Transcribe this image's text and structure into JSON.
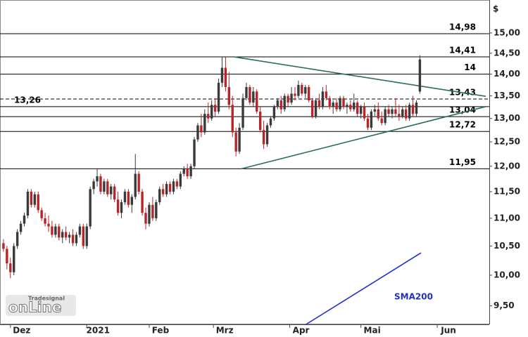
{
  "chart_data": {
    "type": "candlestick",
    "y_unit_label": "$",
    "log_y": true,
    "xlim": [
      0,
      141
    ],
    "ylim": [
      9.21,
      15.85
    ],
    "xticks": [
      {
        "value": 3,
        "label": "Dez"
      },
      {
        "value": 25,
        "label": "2021"
      },
      {
        "value": 43,
        "label": "Feb"
      },
      {
        "value": 61.5,
        "label": "Mrz"
      },
      {
        "value": 83.5,
        "label": "Apr"
      },
      {
        "value": 104,
        "label": "Mai"
      },
      {
        "value": 126,
        "label": "Jun"
      }
    ],
    "yticks": [
      {
        "value": 15,
        "label": "15,00"
      },
      {
        "value": 14.5,
        "label": "14,50"
      },
      {
        "value": 14,
        "label": "14,00"
      },
      {
        "value": 13.5,
        "label": "13,50"
      },
      {
        "value": 13,
        "label": "13,00"
      },
      {
        "value": 12.5,
        "label": "12,50"
      },
      {
        "value": 12,
        "label": "12,00"
      },
      {
        "value": 11.5,
        "label": "11,50"
      },
      {
        "value": 11,
        "label": "11,00"
      },
      {
        "value": 10.5,
        "label": "10,50"
      },
      {
        "value": 10,
        "label": "10,00"
      },
      {
        "value": 9.5,
        "label": "9,50"
      }
    ],
    "up_color": "#3a3a3a",
    "down_color": "#b5262b",
    "x": [
      1,
      2,
      3,
      4,
      5,
      6,
      7,
      8,
      9,
      10,
      11,
      12,
      13,
      14,
      15,
      16,
      17,
      18,
      19,
      20,
      21,
      22,
      23,
      24,
      25,
      26,
      27,
      28,
      29,
      30,
      31,
      32,
      33,
      34,
      35,
      36,
      37,
      38,
      39,
      40,
      41,
      42,
      43,
      44,
      45,
      46,
      47,
      48,
      49,
      50,
      51,
      52,
      53,
      54,
      55,
      56,
      57,
      58,
      59,
      60,
      61,
      62,
      63,
      64,
      65,
      66,
      67,
      68,
      69,
      70,
      71,
      72,
      73,
      74,
      75,
      76,
      77,
      78,
      79,
      80,
      81,
      82,
      83,
      84,
      85,
      86,
      87,
      88,
      89,
      90,
      91,
      92,
      93,
      94,
      95,
      96,
      97,
      98,
      99,
      100,
      101,
      102,
      103,
      104,
      105,
      106,
      107,
      108,
      109,
      110,
      111,
      112,
      113,
      114,
      115,
      116,
      117,
      118,
      119,
      120,
      121
    ],
    "open": [
      10.55,
      10.45,
      10.2,
      10.05,
      10.5,
      10.75,
      10.9,
      11.05,
      11.5,
      11.25,
      11.45,
      11.15,
      11.0,
      10.9,
      10.85,
      10.7,
      10.85,
      10.65,
      10.75,
      10.65,
      10.7,
      10.55,
      10.7,
      10.85,
      10.5,
      10.85,
      11.55,
      11.7,
      11.8,
      11.5,
      11.7,
      11.45,
      11.6,
      11.35,
      11.1,
      11.3,
      11.5,
      11.25,
      11.4,
      11.85,
      11.5,
      11.1,
      10.9,
      11.25,
      11.0,
      11.3,
      11.55,
      11.45,
      11.65,
      11.5,
      11.7,
      11.6,
      11.85,
      11.95,
      11.8,
      12.0,
      12.55,
      12.85,
      12.7,
      13.1,
      13.0,
      13.3,
      13.15,
      13.8,
      14.15,
      13.7,
      13.3,
      12.7,
      12.3,
      12.8,
      13.45,
      13.7,
      13.35,
      13.6,
      13.15,
      12.75,
      12.45,
      12.85,
      13.0,
      13.25,
      13.4,
      13.2,
      13.5,
      13.35,
      13.55,
      13.5,
      13.75,
      13.55,
      13.7,
      13.4,
      13.05,
      13.4,
      13.25,
      13.6,
      13.45,
      13.25,
      13.35,
      13.2,
      13.45,
      13.25,
      13.3,
      13.2,
      13.35,
      13.1,
      13.25,
      13.0,
      12.8,
      13.15,
      13.2,
      13.0,
      12.9,
      13.2,
      13.1,
      13.2,
      13.1,
      13.05,
      13.2,
      13.0,
      13.3,
      13.1,
      13.6
    ],
    "high": [
      10.62,
      10.5,
      10.3,
      10.55,
      10.8,
      10.95,
      11.1,
      11.55,
      11.55,
      11.5,
      11.5,
      11.2,
      11.1,
      11.05,
      10.95,
      10.9,
      10.9,
      10.8,
      10.85,
      10.75,
      10.8,
      10.75,
      10.9,
      10.9,
      10.9,
      11.6,
      11.75,
      11.95,
      11.85,
      11.75,
      11.75,
      11.65,
      11.65,
      11.5,
      11.35,
      11.55,
      11.55,
      11.45,
      12.25,
      11.9,
      11.55,
      11.2,
      11.3,
      11.4,
      11.35,
      11.6,
      11.65,
      11.7,
      11.7,
      11.75,
      11.75,
      11.9,
      12.0,
      12.05,
      12.05,
      12.6,
      12.9,
      13.1,
      13.2,
      13.35,
      13.4,
      13.45,
      13.9,
      14.4,
      14.4,
      14.05,
      13.5,
      12.8,
      12.9,
      13.55,
      13.8,
      13.75,
      13.7,
      13.65,
      13.25,
      12.95,
      12.9,
      13.05,
      13.3,
      13.45,
      13.5,
      13.55,
      13.55,
      13.7,
      13.7,
      13.85,
      13.8,
      13.75,
      13.75,
      13.45,
      13.45,
      13.55,
      13.7,
      13.75,
      13.5,
      13.4,
      13.45,
      13.5,
      13.5,
      13.35,
      13.4,
      13.55,
      13.4,
      13.3,
      13.35,
      13.1,
      13.2,
      13.3,
      13.35,
      13.15,
      13.25,
      13.3,
      13.25,
      13.45,
      13.3,
      13.25,
      13.3,
      13.35,
      13.5,
      13.4,
      14.45
    ],
    "low": [
      10.4,
      10.1,
      9.95,
      10.0,
      10.45,
      10.7,
      10.85,
      11.0,
      11.2,
      11.2,
      11.1,
      10.95,
      10.85,
      10.75,
      10.65,
      10.65,
      10.6,
      10.55,
      10.6,
      10.55,
      10.5,
      10.5,
      10.65,
      10.45,
      10.45,
      10.8,
      11.45,
      11.6,
      11.45,
      11.45,
      11.4,
      11.35,
      11.3,
      11.05,
      11.0,
      11.25,
      11.2,
      11.1,
      11.35,
      11.45,
      11.05,
      10.8,
      10.85,
      10.95,
      10.95,
      11.25,
      11.4,
      11.4,
      11.45,
      11.45,
      11.55,
      11.55,
      11.8,
      11.75,
      11.75,
      11.95,
      12.5,
      12.6,
      12.65,
      12.9,
      12.95,
      13.05,
      13.1,
      13.7,
      13.6,
      13.2,
      12.6,
      12.2,
      12.25,
      12.75,
      13.4,
      13.3,
      13.25,
      13.1,
      12.7,
      12.35,
      12.4,
      12.8,
      12.95,
      13.2,
      13.1,
      13.15,
      13.25,
      13.3,
      13.4,
      13.45,
      13.5,
      13.45,
      13.35,
      13.0,
      13.0,
      13.2,
      13.2,
      13.4,
      13.2,
      13.1,
      13.15,
      13.15,
      13.2,
      13.1,
      13.15,
      13.15,
      13.05,
      13.0,
      12.95,
      12.75,
      12.75,
      13.05,
      12.95,
      12.85,
      12.85,
      13.05,
      13.0,
      13.05,
      12.95,
      13.0,
      12.95,
      12.95,
      13.05,
      13.05,
      13.55
    ],
    "close": [
      10.45,
      10.2,
      10.05,
      10.5,
      10.75,
      10.9,
      11.05,
      11.5,
      11.25,
      11.45,
      11.15,
      11.0,
      10.9,
      10.85,
      10.7,
      10.85,
      10.65,
      10.75,
      10.65,
      10.7,
      10.55,
      10.7,
      10.85,
      10.5,
      10.85,
      11.55,
      11.7,
      11.8,
      11.5,
      11.7,
      11.45,
      11.6,
      11.35,
      11.1,
      11.3,
      11.5,
      11.25,
      11.4,
      11.85,
      11.5,
      11.1,
      10.9,
      11.25,
      11.0,
      11.3,
      11.55,
      11.45,
      11.65,
      11.5,
      11.7,
      11.6,
      11.85,
      11.95,
      11.8,
      12.0,
      12.55,
      12.85,
      12.7,
      13.1,
      13.0,
      13.3,
      13.15,
      13.8,
      14.15,
      13.7,
      13.3,
      12.7,
      12.3,
      12.8,
      13.45,
      13.7,
      13.35,
      13.6,
      13.15,
      12.75,
      12.45,
      12.85,
      13.0,
      13.25,
      13.4,
      13.2,
      13.5,
      13.35,
      13.55,
      13.5,
      13.75,
      13.55,
      13.7,
      13.4,
      13.05,
      13.4,
      13.25,
      13.6,
      13.45,
      13.25,
      13.35,
      13.2,
      13.45,
      13.25,
      13.3,
      13.2,
      13.35,
      13.1,
      13.25,
      13.0,
      12.8,
      13.15,
      13.2,
      13.0,
      12.9,
      13.2,
      13.1,
      13.2,
      13.1,
      13.05,
      13.2,
      13.0,
      13.3,
      13.1,
      13.35,
      14.35
    ],
    "levels": [
      {
        "value": 14.98,
        "label": "14,98",
        "dashed": false,
        "side": "right"
      },
      {
        "value": 14.41,
        "label": "14,41",
        "dashed": false,
        "side": "right"
      },
      {
        "value": 14,
        "label": "14",
        "dashed": false,
        "side": "right"
      },
      {
        "value": 13.43,
        "label": "13,43",
        "dashed": true,
        "side": "right"
      },
      {
        "value": 13.26,
        "label": "13,26",
        "dashed": false,
        "side": "left"
      },
      {
        "value": 13.04,
        "label": "13,04",
        "dashed": false,
        "side": "right"
      },
      {
        "value": 12.72,
        "label": "12,72",
        "dashed": false,
        "side": "right"
      },
      {
        "value": 11.95,
        "label": "11,95",
        "dashed": false,
        "side": "right"
      }
    ],
    "trendlines": [
      {
        "x": [
          67.5,
          140
        ],
        "values": [
          14.41,
          13.49
        ],
        "color": "#2e6b62"
      },
      {
        "x": [
          69.6,
          140
        ],
        "values": [
          11.95,
          13.26
        ],
        "color": "#2e6b62"
      }
    ],
    "sma": {
      "name": "SMA200",
      "color": "#1f2fc8",
      "x": [
        88.2,
        121.3
      ],
      "values": [
        9.21,
        10.38
      ]
    },
    "logo": {
      "brand": "Tradesignal",
      "product": "onLine"
    }
  }
}
